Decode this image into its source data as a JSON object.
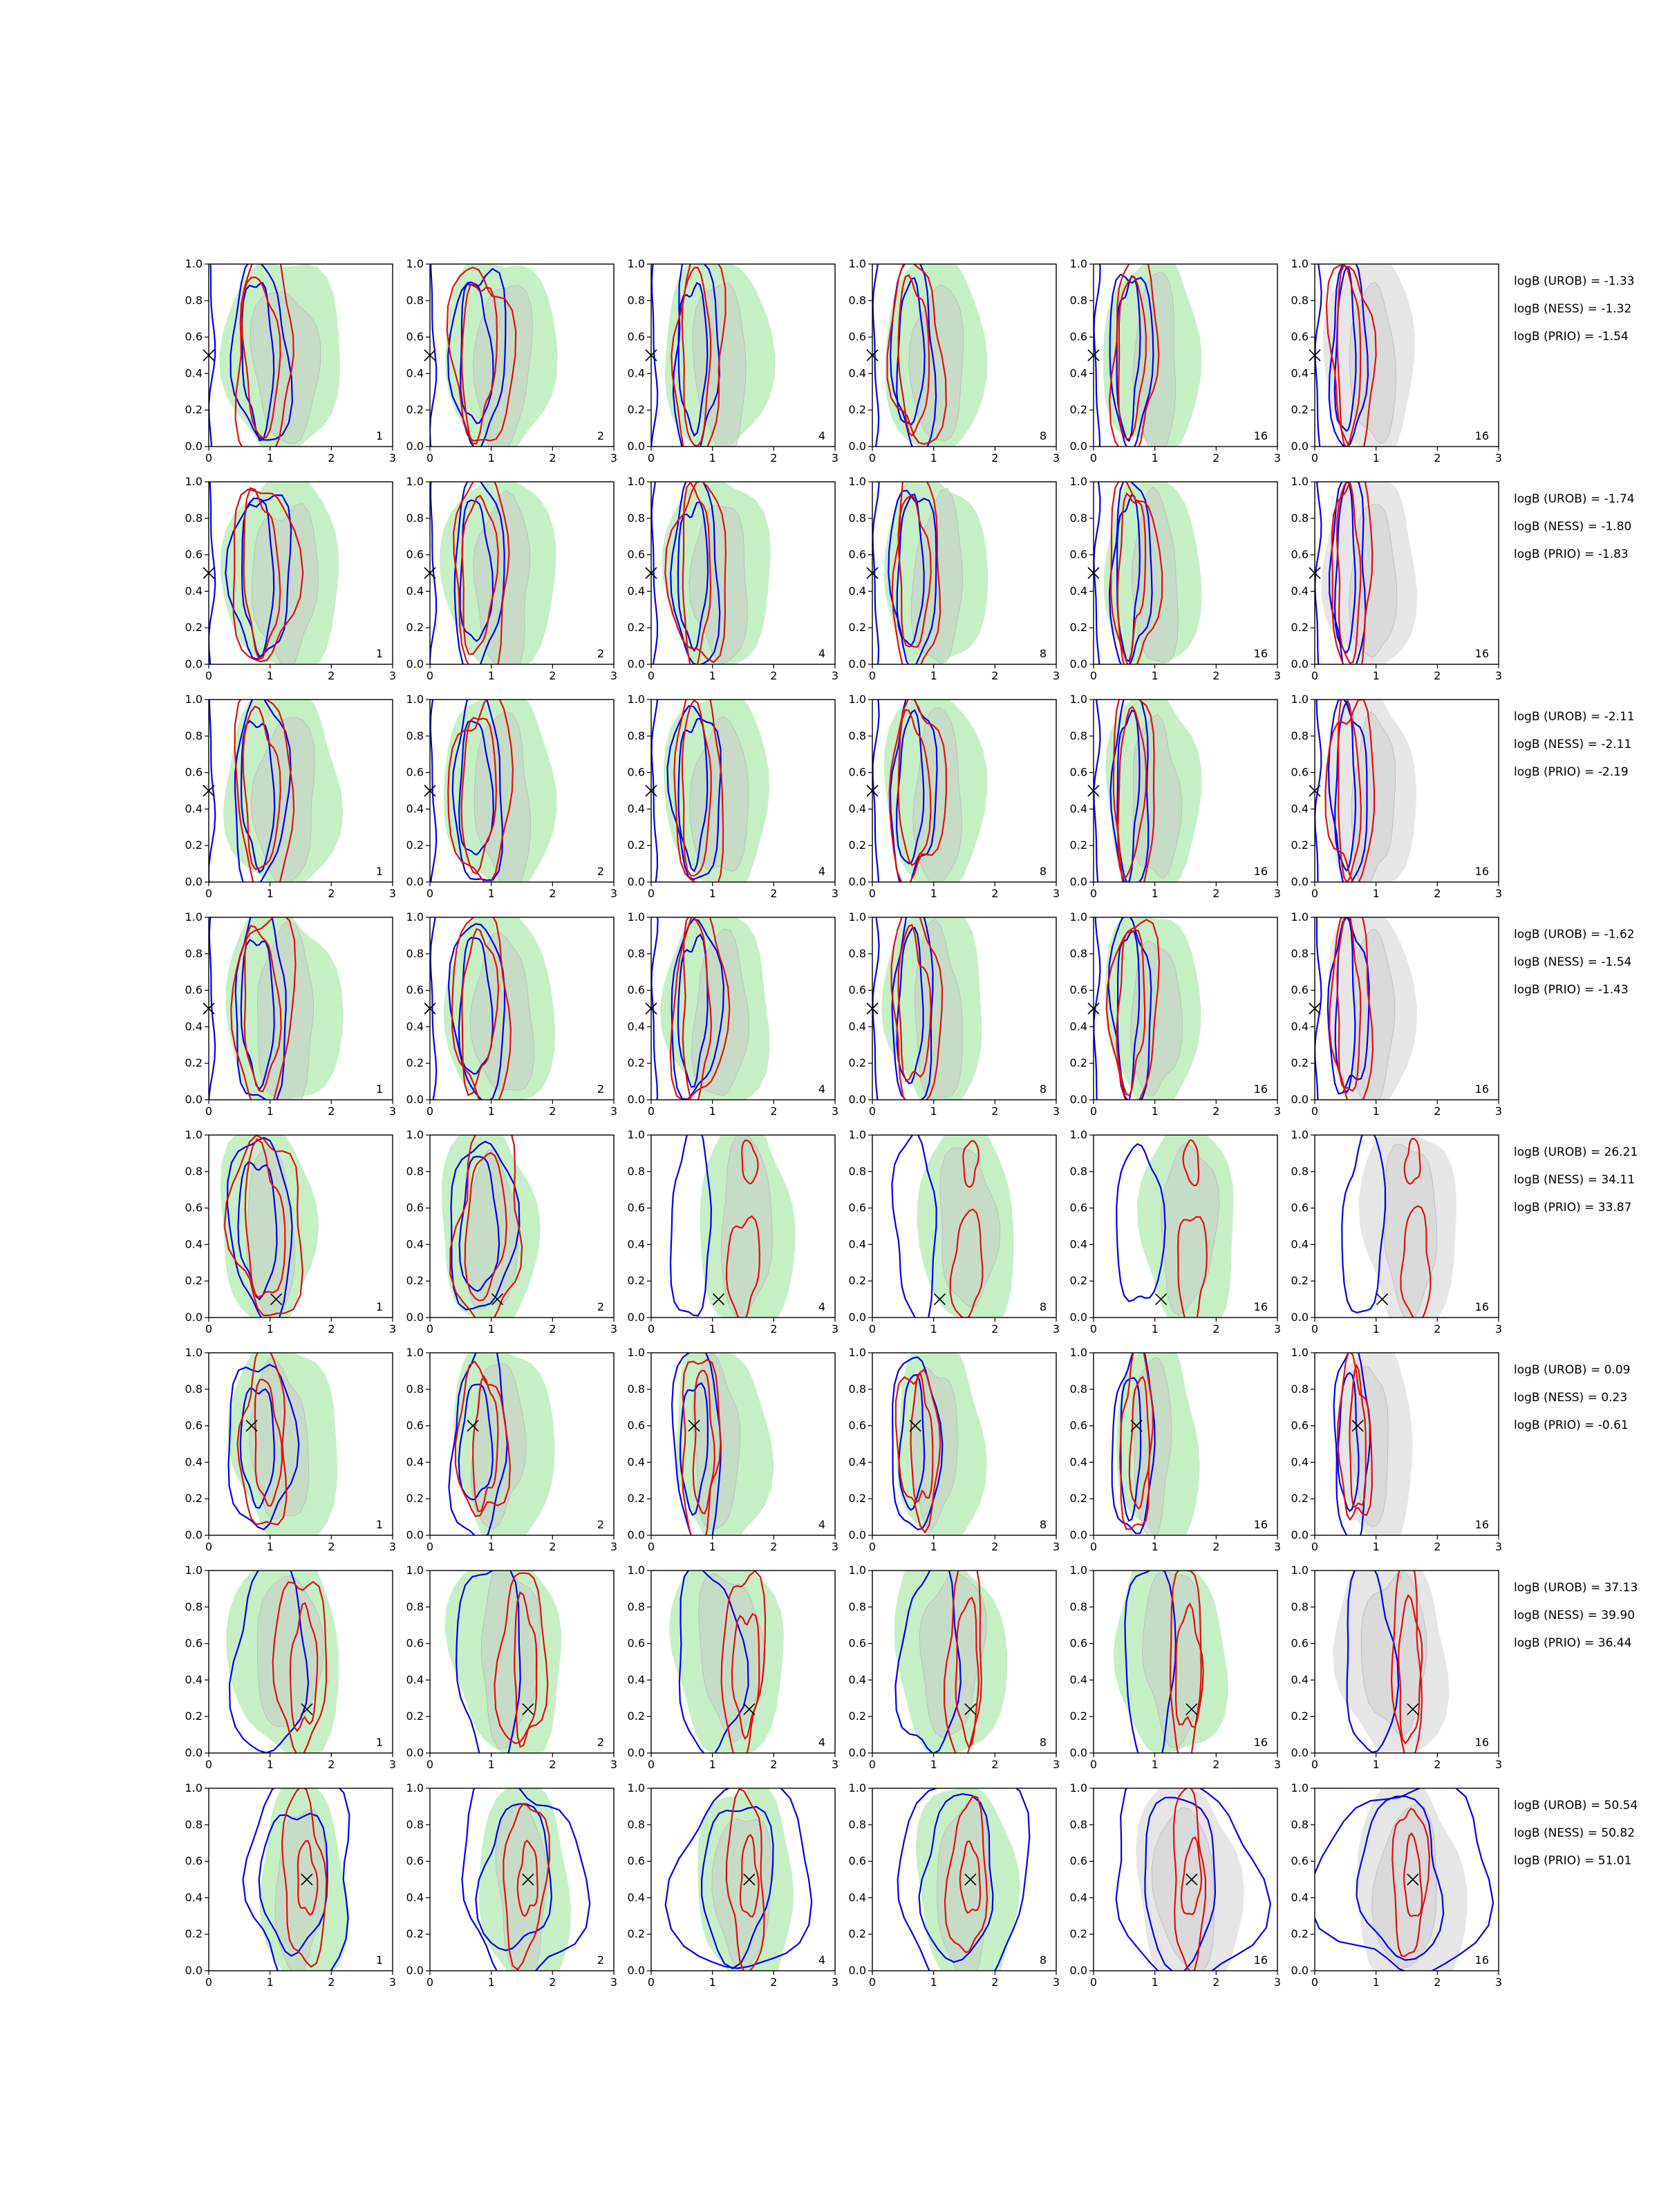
{
  "chart_data": {
    "type": "contour-grid",
    "rows": 8,
    "cols": 6,
    "panel_labels": [
      "1",
      "2",
      "4",
      "8",
      "16",
      "16"
    ],
    "xlim": [
      0,
      3
    ],
    "ylim": [
      0,
      1
    ],
    "xticks": [
      "0",
      "1",
      "2",
      "3"
    ],
    "yticks": [
      "0.0",
      "0.2",
      "0.4",
      "0.6",
      "0.8",
      "1.0"
    ],
    "colors": {
      "fill_outer": "#c6efc6",
      "fill_inner": "#c8cfc8",
      "blue": "#0000ee",
      "red": "#e01010",
      "grey_fill": "#e6e6e6",
      "grey_fill_inner": "#d2d2d2"
    },
    "markers": [
      [
        0.0,
        0.5
      ],
      [
        0.0,
        0.5
      ],
      [
        0.0,
        0.5
      ],
      [
        0.0,
        0.5
      ],
      [
        1.1,
        0.1
      ],
      [
        0.7,
        0.6
      ],
      [
        1.6,
        0.24
      ],
      [
        1.6,
        0.5
      ]
    ],
    "logB": [
      {
        "urob": "logB (UROB) = -1.33",
        "ness": "logB (NESS) = -1.32",
        "prio": "logB (PRIO) = -1.54"
      },
      {
        "urob": "logB (UROB) = -1.74",
        "ness": "logB (NESS) = -1.80",
        "prio": "logB (PRIO) = -1.83"
      },
      {
        "urob": "logB (UROB) = -2.11",
        "ness": "logB (NESS) = -2.11",
        "prio": "logB (PRIO) = -2.19"
      },
      {
        "urob": "logB (UROB) = -1.62",
        "ness": "logB (NESS) = -1.54",
        "prio": "logB (PRIO) = -1.43"
      },
      {
        "urob": "logB (UROB) = 26.21",
        "ness": "logB (NESS) = 34.11",
        "prio": "logB (PRIO) = 33.87"
      },
      {
        "urob": "logB (UROB) = 0.09",
        "ness": "logB (NESS) = 0.23",
        "prio": "logB (PRIO) = -0.61"
      },
      {
        "urob": "logB (UROB) = 37.13",
        "ness": "logB (NESS) = 39.90",
        "prio": "logB (PRIO) = 36.44"
      },
      {
        "urob": "logB (UROB) = 50.54",
        "ness": "logB (NESS) = 50.82",
        "prio": "logB (PRIO) = 51.01"
      }
    ]
  }
}
